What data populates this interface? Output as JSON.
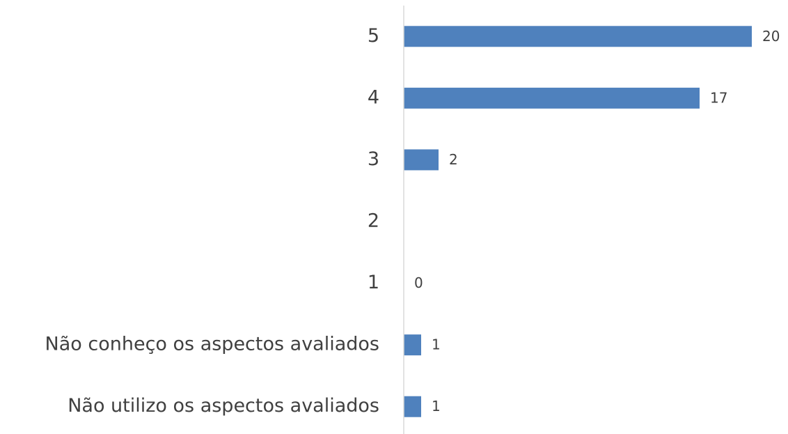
{
  "chart_data": {
    "type": "barh",
    "categories": [
      "5",
      "4",
      "3",
      "2",
      "1",
      "Não conheço os aspectos avaliados",
      "Não utilizo os aspectos avaliados"
    ],
    "values": [
      20,
      17,
      2,
      null,
      0,
      1,
      1
    ],
    "color": "#4f81bd",
    "xlim": [
      0,
      20
    ]
  }
}
